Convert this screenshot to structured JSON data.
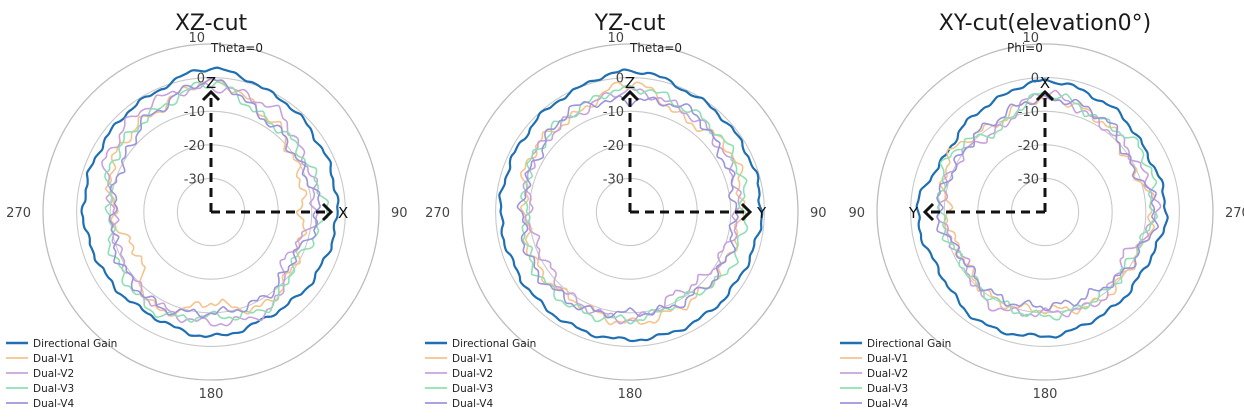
{
  "chart_data": [
    {
      "type": "line",
      "polar": true,
      "title": "XZ-cut",
      "reference_label": "Theta=0",
      "direction_labels": {
        "top": "10",
        "right": "90",
        "bottom": "180",
        "left": "270"
      },
      "axis_arrows": {
        "vertical": "Z",
        "horizontal": "X",
        "horizontal_side": "right"
      },
      "radial_ticks": [
        "0",
        "-10",
        "-20",
        "-30"
      ],
      "rlim": [
        -40,
        10
      ],
      "angle_deg": [
        0,
        30,
        60,
        90,
        120,
        150,
        180,
        210,
        240,
        270,
        300,
        330
      ],
      "series": [
        {
          "name": "Directional Gain",
          "color": "#1f6fb2",
          "values": [
            2.5,
            -0.5,
            -2.0,
            -2.5,
            -3.5,
            -4.5,
            -3.0,
            -4.5,
            -3.5,
            -2.0,
            -2.0,
            -1.0
          ]
        },
        {
          "name": "Dual-V1",
          "color": "#f5c38d",
          "values": [
            -1,
            -7,
            -11,
            -13,
            -11,
            -8,
            -13,
            -7,
            -15,
            -11,
            -7,
            -6
          ]
        },
        {
          "name": "Dual-V2",
          "color": "#c8a2dc",
          "values": [
            -3,
            -4,
            -8,
            -9,
            -14,
            -6,
            -7,
            -8,
            -10,
            -11,
            -5,
            -3
          ]
        },
        {
          "name": "Dual-V3",
          "color": "#8ee0b3",
          "values": [
            -2,
            -8,
            -8,
            -6,
            -11,
            -7,
            -9,
            -6,
            -8,
            -10,
            -7,
            -6
          ]
        },
        {
          "name": "Dual-V4",
          "color": "#9b95dc",
          "values": [
            -1,
            -8,
            -10,
            -8,
            -12,
            -10,
            -10,
            -8,
            -9,
            -11,
            -10,
            -6
          ]
        }
      ]
    },
    {
      "type": "line",
      "polar": true,
      "title": "YZ-cut",
      "reference_label": "Theta=0",
      "direction_labels": {
        "top": "10",
        "right": "90",
        "bottom": "180",
        "left": "270"
      },
      "axis_arrows": {
        "vertical": "Z",
        "horizontal": "Y",
        "horizontal_side": "right"
      },
      "radial_ticks": [
        "0",
        "-10",
        "-20",
        "-30"
      ],
      "rlim": [
        -40,
        10
      ],
      "angle_deg": [
        0,
        30,
        60,
        90,
        120,
        150,
        180,
        210,
        240,
        270,
        300,
        330
      ],
      "series": [
        {
          "name": "Directional Gain",
          "color": "#1f6fb2",
          "values": [
            2,
            -0.5,
            -1.0,
            -1.0,
            -2.0,
            -2.0,
            -2.0,
            -2.0,
            -2.0,
            -1.5,
            -1.5,
            -0.5
          ]
        },
        {
          "name": "Dual-V1",
          "color": "#f5c38d",
          "values": [
            -2,
            -8,
            -5,
            -7,
            -8,
            -8,
            -7,
            -9,
            -8,
            -9,
            -6,
            -7
          ]
        },
        {
          "name": "Dual-V2",
          "color": "#c8a2dc",
          "values": [
            -4,
            -6,
            -7,
            -8,
            -10,
            -12,
            -8,
            -9,
            -11,
            -10,
            -7,
            -7
          ]
        },
        {
          "name": "Dual-V3",
          "color": "#8ee0b3",
          "values": [
            -3,
            -5,
            -5,
            -6,
            -6,
            -10,
            -8,
            -7,
            -7,
            -9,
            -7,
            -6
          ]
        },
        {
          "name": "Dual-V4",
          "color": "#9b95dc",
          "values": [
            -7,
            -5,
            -8,
            -9,
            -8,
            -9,
            -10,
            -8,
            -7,
            -8,
            -8,
            -5
          ]
        }
      ]
    },
    {
      "type": "line",
      "polar": true,
      "title": "XY-cut(elevation0°)",
      "reference_label": "Phi=0",
      "direction_labels": {
        "top": "10",
        "right": "270",
        "bottom": "180",
        "left": "90"
      },
      "axis_arrows": {
        "vertical": "X",
        "horizontal": "Y",
        "horizontal_side": "left"
      },
      "radial_ticks": [
        "0",
        "-10",
        "-20",
        "-30"
      ],
      "rlim": [
        -40,
        10
      ],
      "angle_deg": [
        0,
        30,
        60,
        90,
        120,
        150,
        180,
        210,
        240,
        270,
        300,
        330
      ],
      "series": [
        {
          "name": "Directional Gain",
          "color": "#1f6fb2",
          "values": [
            -1,
            -4,
            -6,
            -2,
            -4,
            -2,
            -3,
            -5,
            -6,
            -4,
            -5,
            -3
          ]
        },
        {
          "name": "Dual-V1",
          "color": "#f5c38d",
          "values": [
            -6,
            -10,
            -7,
            -11,
            -12,
            -10,
            -11,
            -9,
            -10,
            -8,
            -11,
            -8
          ]
        },
        {
          "name": "Dual-V2",
          "color": "#c8a2dc",
          "values": [
            -5,
            -12,
            -10,
            -9,
            -12,
            -8,
            -10,
            -9,
            -13,
            -7,
            -9,
            -9
          ]
        },
        {
          "name": "Dual-V3",
          "color": "#8ee0b3",
          "values": [
            -5,
            -12,
            -7,
            -9,
            -11,
            -10,
            -9,
            -10,
            -11,
            -8,
            -6,
            -8
          ]
        },
        {
          "name": "Dual-V4",
          "color": "#9b95dc",
          "values": [
            -6,
            -9,
            -10,
            -8,
            -12,
            -11,
            -12,
            -12,
            -10,
            -7,
            -11,
            -7
          ]
        }
      ]
    }
  ]
}
